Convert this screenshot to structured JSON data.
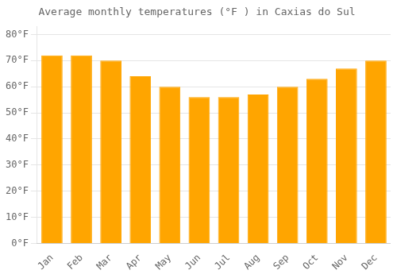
{
  "chart_data": {
    "type": "bar",
    "title": "Average monthly temperatures (°F ) in Caxias do Sul",
    "categories": [
      "Jan",
      "Feb",
      "Mar",
      "Apr",
      "May",
      "Jun",
      "Jul",
      "Aug",
      "Sep",
      "Oct",
      "Nov",
      "Dec"
    ],
    "values": [
      72,
      72,
      70,
      64,
      60,
      56,
      56,
      57,
      60,
      63,
      67,
      70
    ],
    "color": "#FFA500",
    "ylim": [
      0,
      83
    ],
    "yticks": [
      {
        "value": 0,
        "label": "0°F"
      },
      {
        "value": 10,
        "label": "10°F"
      },
      {
        "value": 20,
        "label": "20°F"
      },
      {
        "value": 30,
        "label": "30°F"
      },
      {
        "value": 40,
        "label": "40°F"
      },
      {
        "value": 50,
        "label": "50°F"
      },
      {
        "value": 60,
        "label": "60°F"
      },
      {
        "value": 70,
        "label": "70°F"
      },
      {
        "value": 80,
        "label": "80°F"
      }
    ],
    "grid": true
  }
}
